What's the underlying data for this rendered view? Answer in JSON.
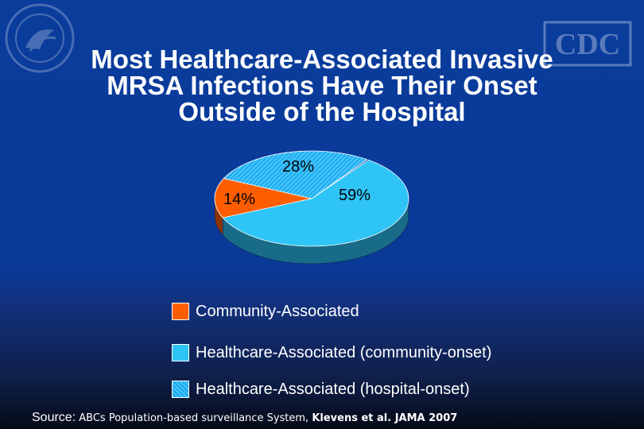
{
  "title": {
    "line1": "Most Healthcare-Associated Invasive",
    "line2": "MRSA Infections Have Their Onset",
    "line3": "Outside of the Hospital"
  },
  "logo": {
    "cdc_text": "CDC"
  },
  "colors": {
    "background": "#0a3c9c",
    "community": "#ff5e00",
    "hc_community_onset": "#2ec4f5",
    "hc_hospital_onset": "#45c8ff",
    "text": "#ffffff"
  },
  "chart_data": {
    "type": "pie",
    "style": "3d",
    "slices": [
      {
        "name": "Community-Associated",
        "value": 14,
        "label": "14%",
        "color": "#ff5e00"
      },
      {
        "name": "Healthcare-Associated (community-onset)",
        "value": 59,
        "label": "59%",
        "color": "#2ec4f5"
      },
      {
        "name": "Healthcare-Associated (hospital-onset)",
        "value": 28,
        "label": "28%",
        "color": "#45c8ff",
        "pattern": "hatched"
      }
    ],
    "legend": {
      "placement": "bottom",
      "entries": [
        "Community-Associated",
        "Healthcare-Associated (community-onset)",
        "Healthcare-Associated (hospital-onset)"
      ]
    }
  },
  "source": {
    "label": "Source:",
    "text": " ABCs Population-based surveillance System, ",
    "citation": "Klevens et al. JAMA 2007"
  }
}
